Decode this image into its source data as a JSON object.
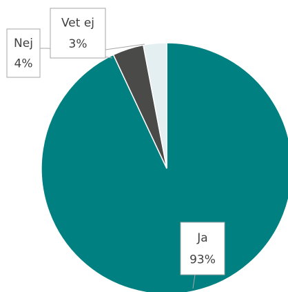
{
  "chart_data": {
    "type": "pie",
    "categories": [
      "Ja",
      "Nej",
      "Vet ej"
    ],
    "values": [
      93,
      4,
      3
    ],
    "value_labels": [
      "93%",
      "4%",
      "3%"
    ],
    "colors": [
      "#008080",
      "#4a4a48",
      "#e3eff1"
    ]
  }
}
